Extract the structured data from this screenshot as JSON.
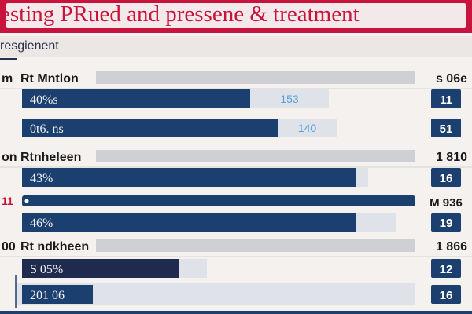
{
  "title": "esting PRued and pressene & treatment",
  "subtitle": "resgienent",
  "colors": {
    "banner": "#c8143c",
    "bar_dark": "#1b3f6e",
    "bar_navy": "#1f2a4f",
    "track": "#cfd0d4",
    "light_segment": "#dfe3e9",
    "badge": "#1b3f6e",
    "secondary_text": "#5a9fd6"
  },
  "chart_data": {
    "type": "bar",
    "orientation": "horizontal",
    "xlim": [
      0,
      100
    ],
    "rows": [
      {
        "kind": "group",
        "label": "Rt Mntlon",
        "left_prefix": "m",
        "value_label": "s 06e"
      },
      {
        "kind": "bar",
        "label": "40%s",
        "value": 58,
        "secondary_value": 20,
        "secondary_label": "153",
        "badge": "11"
      },
      {
        "kind": "bar",
        "label": "0t6. ns",
        "value": 65,
        "secondary_value": 15,
        "secondary_label": "140",
        "badge": "51"
      },
      {
        "kind": "group",
        "label": "Rtnheleen",
        "left_prefix": "on",
        "value_label": "1 810"
      },
      {
        "kind": "bar",
        "label": "43%",
        "value": 85,
        "secondary_value": 3,
        "secondary_label": "",
        "badge": "16"
      },
      {
        "kind": "bar",
        "label": "",
        "value": 100,
        "secondary_value": 0,
        "secondary_label": "",
        "badge": "M 936",
        "left_prefix": "11",
        "highlight": true
      },
      {
        "kind": "bar",
        "label": "46%",
        "value": 85,
        "secondary_value": 10,
        "secondary_label": "",
        "badge": "19"
      },
      {
        "kind": "group",
        "label": "Rt ndkheen",
        "left_prefix": "00",
        "value_label": "1 866"
      },
      {
        "kind": "bar",
        "label": "S 05%",
        "value": 40,
        "secondary_value": 7,
        "secondary_label": "",
        "badge": "12",
        "navy": true
      },
      {
        "kind": "bar",
        "label": "201 06",
        "value": 18,
        "secondary_value": 0,
        "secondary_label": "",
        "badge": "16",
        "track": true
      }
    ]
  }
}
